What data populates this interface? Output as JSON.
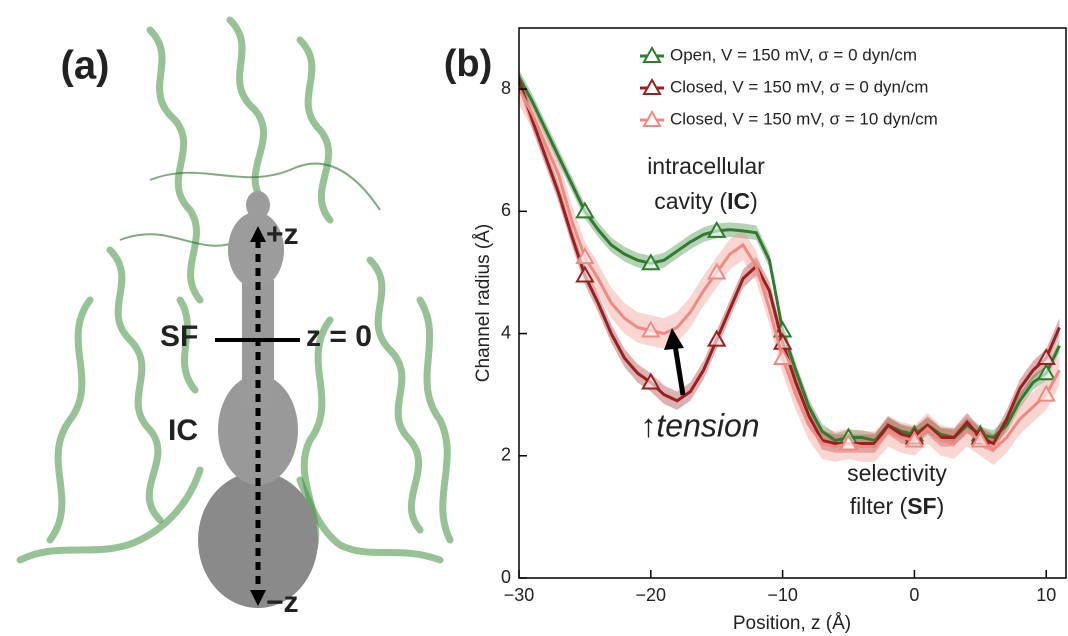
{
  "panel_a": {
    "label": "(a)",
    "plus_z": "+z",
    "sf": "SF",
    "z0": "z = 0",
    "ic": "IC",
    "minus_z": "−z"
  },
  "chart_data": {
    "type": "line",
    "panel_label": "(b)",
    "xlabel": "Position, z (Å)",
    "ylabel": "Channel radius (Å)",
    "xlim": [
      -30,
      11.5
    ],
    "ylim": [
      0,
      9
    ],
    "xticks": [
      {
        "value": -30,
        "label": "−30"
      },
      {
        "value": -20,
        "label": "−20"
      },
      {
        "value": -10,
        "label": "−10"
      },
      0,
      10
    ],
    "yticks": [
      0,
      2,
      4,
      6,
      8
    ],
    "legend": "upper right",
    "annotations": {
      "ic_line1": "intracellular",
      "ic_line2_pre": "cavity (",
      "ic_line2_bold": "IC",
      "ic_line2_post": ")",
      "tension": "↑tension",
      "sf_line1": "selectivity",
      "sf_line2_pre": "filter (",
      "sf_line2_bold": "SF",
      "sf_line2_post": ")"
    },
    "x": [
      -30,
      -29,
      -28,
      -27,
      -26,
      -25,
      -24,
      -23,
      -22,
      -21,
      -20,
      -19,
      -18,
      -17,
      -16,
      -15,
      -14,
      -13,
      -12,
      -11,
      -10,
      -9,
      -8,
      -7,
      -6,
      -5,
      -4,
      -3,
      -2,
      -1,
      0,
      1,
      2,
      3,
      4,
      5,
      6,
      7,
      8,
      9,
      10,
      11
    ],
    "series": [
      {
        "name": "Open, V = 150 mV, σ = 0 dyn/cm",
        "color": "#2e7d2e",
        "error": 0.12,
        "values": [
          8.2,
          7.8,
          7.35,
          6.9,
          6.45,
          6.0,
          5.7,
          5.45,
          5.3,
          5.2,
          5.15,
          5.2,
          5.35,
          5.5,
          5.62,
          5.68,
          5.7,
          5.68,
          5.65,
          5.2,
          4.05,
          3.4,
          2.8,
          2.4,
          2.25,
          2.3,
          2.3,
          2.25,
          2.5,
          2.4,
          2.35,
          2.5,
          2.35,
          2.3,
          2.5,
          2.35,
          2.3,
          2.5,
          2.9,
          3.2,
          3.35,
          3.8
        ]
      },
      {
        "name": "Closed, V = 150 mV, σ = 0 dyn/cm",
        "color": "#9b1f1f",
        "error": 0.15,
        "values": [
          8.15,
          7.5,
          6.9,
          6.3,
          5.6,
          4.95,
          4.5,
          4.0,
          3.6,
          3.35,
          3.2,
          3.0,
          2.9,
          3.05,
          3.4,
          3.9,
          4.4,
          4.9,
          5.1,
          4.7,
          3.85,
          3.2,
          2.65,
          2.25,
          2.2,
          2.2,
          2.2,
          2.2,
          2.5,
          2.35,
          2.3,
          2.5,
          2.3,
          2.3,
          2.55,
          2.3,
          2.2,
          2.6,
          3.1,
          3.4,
          3.6,
          4.1
        ]
      },
      {
        "name": "Closed, V = 150 mV, σ = 10 dyn/cm",
        "color": "#f08a80",
        "error": 0.25,
        "values": [
          8.0,
          7.6,
          7.1,
          6.6,
          5.85,
          5.25,
          4.9,
          4.5,
          4.25,
          4.1,
          4.05,
          4.0,
          4.1,
          4.35,
          4.7,
          5.0,
          5.3,
          5.45,
          5.1,
          4.4,
          3.6,
          3.0,
          2.5,
          2.2,
          2.15,
          2.2,
          2.15,
          2.15,
          2.4,
          2.3,
          2.25,
          2.45,
          2.25,
          2.2,
          2.4,
          2.25,
          2.1,
          2.3,
          2.6,
          2.8,
          3.0,
          3.4
        ]
      }
    ]
  }
}
